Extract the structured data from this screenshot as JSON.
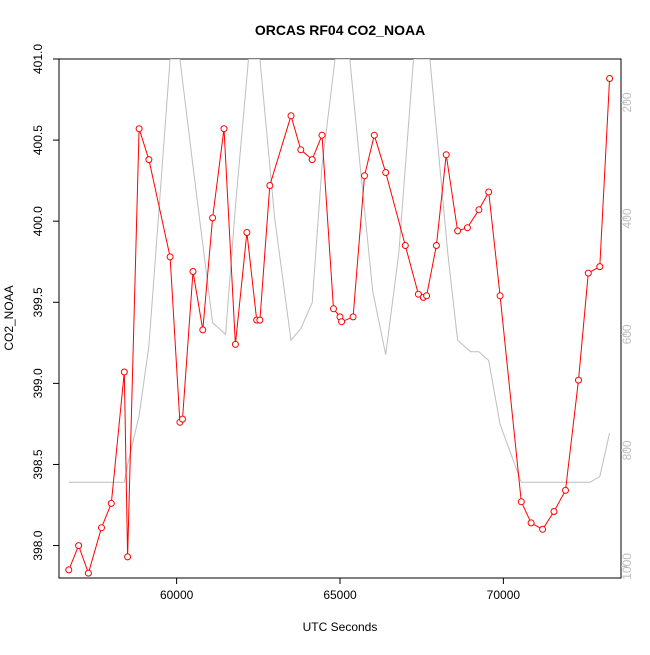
{
  "chart_data": {
    "type": "line",
    "title": "ORCAS RF04 CO2_NOAA",
    "xlabel": "UTC Seconds",
    "ylabel": "CO2_NOAA",
    "xlim": [
      56400,
      73600
    ],
    "ylim": [
      397.8,
      401.0
    ],
    "x_ticks": [
      60000,
      65000,
      70000
    ],
    "x_tick_labels": [
      "60000",
      "65000",
      "70000"
    ],
    "y_ticks": [
      398.0,
      398.5,
      399.0,
      399.5,
      400.0,
      400.5,
      401.0
    ],
    "y_tick_labels": [
      "398.0",
      "398.5",
      "399.0",
      "399.5",
      "400.0",
      "400.5",
      "401.0"
    ],
    "y2_reversed": true,
    "y2lim": [
      1020,
      125
    ],
    "y2_ticks": [
      200,
      400,
      600,
      800,
      1000
    ],
    "y2_tick_labels": [
      "200",
      "400",
      "600",
      "800",
      "1000"
    ],
    "grid": false,
    "colors": {
      "co2": "#ff0000",
      "pressure": "#bebebe",
      "axis": "#000000",
      "secondary_axis": "#bebebe"
    },
    "series": [
      {
        "axis": "left",
        "style": "line+points",
        "points": [
          [
            56700,
            397.85
          ],
          [
            57000,
            398.0
          ],
          [
            57300,
            397.83
          ],
          [
            57700,
            398.11
          ],
          [
            58000,
            398.26
          ],
          [
            58400,
            399.07
          ],
          [
            58500,
            397.93
          ],
          [
            58850,
            400.57
          ],
          [
            59150,
            400.38
          ],
          [
            59800,
            399.78
          ],
          [
            60100,
            398.76
          ],
          [
            60180,
            398.78
          ],
          [
            60500,
            399.69
          ],
          [
            60800,
            399.33
          ],
          [
            61100,
            400.02
          ],
          [
            61450,
            400.57
          ],
          [
            61800,
            399.24
          ],
          [
            62150,
            399.93
          ],
          [
            62450,
            399.39
          ],
          [
            62550,
            399.39
          ],
          [
            62850,
            400.22
          ],
          [
            63500,
            400.65
          ],
          [
            63800,
            400.44
          ],
          [
            64150,
            400.38
          ],
          [
            64450,
            400.53
          ],
          [
            64800,
            399.46
          ],
          [
            65000,
            399.41
          ],
          [
            65050,
            399.38
          ],
          [
            65400,
            399.41
          ],
          [
            65750,
            400.28
          ],
          [
            66050,
            400.53
          ],
          [
            66400,
            400.3
          ],
          [
            67000,
            399.85
          ],
          [
            67400,
            399.55
          ],
          [
            67550,
            399.53
          ],
          [
            67650,
            399.54
          ],
          [
            67950,
            399.85
          ],
          [
            68250,
            400.41
          ],
          [
            68600,
            399.94
          ],
          [
            68900,
            399.96
          ],
          [
            69250,
            400.07
          ],
          [
            69550,
            400.18
          ],
          [
            69900,
            399.54
          ],
          [
            70550,
            398.27
          ],
          [
            70850,
            398.14
          ],
          [
            71200,
            398.1
          ],
          [
            71550,
            398.21
          ],
          [
            71900,
            398.34
          ],
          [
            72300,
            399.02
          ],
          [
            72600,
            399.68
          ],
          [
            72950,
            399.72
          ],
          [
            73250,
            400.88
          ]
        ]
      },
      {
        "axis": "right",
        "style": "line",
        "points": [
          [
            56700,
            855
          ],
          [
            58400,
            855
          ],
          [
            58500,
            825
          ],
          [
            58850,
            740
          ],
          [
            59150,
            620
          ],
          [
            59800,
            125
          ],
          [
            60100,
            125
          ],
          [
            60500,
            310
          ],
          [
            61100,
            580
          ],
          [
            61500,
            600
          ],
          [
            61800,
            380
          ],
          [
            62200,
            125
          ],
          [
            62550,
            125
          ],
          [
            63000,
            400
          ],
          [
            63500,
            610
          ],
          [
            63800,
            590
          ],
          [
            64150,
            545
          ],
          [
            64450,
            310
          ],
          [
            64850,
            125
          ],
          [
            65300,
            125
          ],
          [
            65600,
            300
          ],
          [
            66000,
            525
          ],
          [
            66400,
            635
          ],
          [
            66800,
            460
          ],
          [
            67250,
            125
          ],
          [
            67750,
            125
          ],
          [
            68300,
            460
          ],
          [
            68600,
            610
          ],
          [
            69000,
            630
          ],
          [
            69250,
            630
          ],
          [
            69550,
            645
          ],
          [
            69900,
            755
          ],
          [
            70550,
            855
          ],
          [
            72300,
            855
          ],
          [
            72650,
            855
          ],
          [
            72950,
            845
          ],
          [
            73250,
            770
          ]
        ]
      }
    ]
  }
}
